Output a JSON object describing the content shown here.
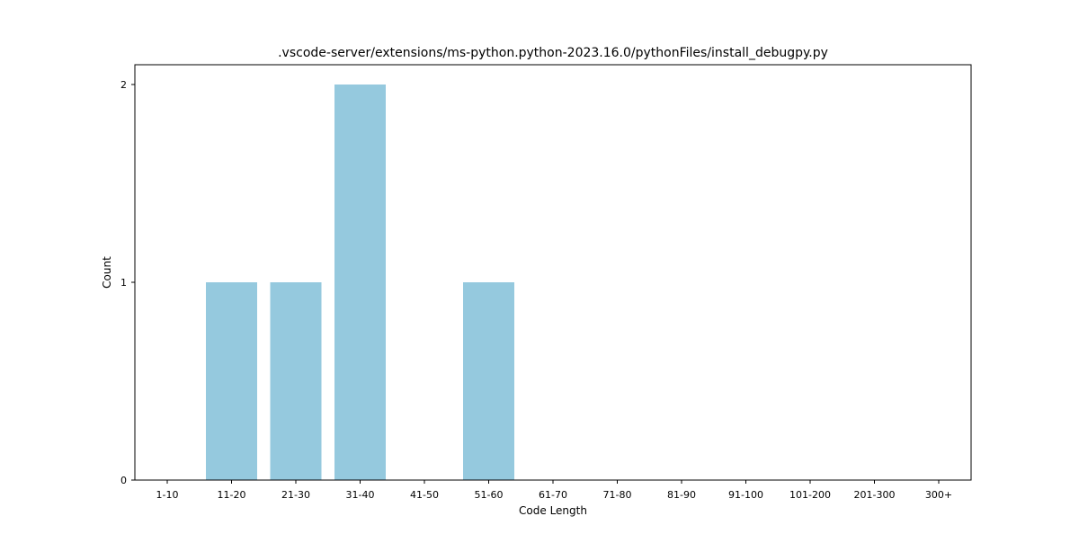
{
  "chart_data": {
    "type": "bar",
    "title": ".vscode-server/extensions/ms-python.python-2023.16.0/pythonFiles/install_debugpy.py",
    "xlabel": "Code Length",
    "ylabel": "Count",
    "categories": [
      "1-10",
      "11-20",
      "21-30",
      "31-40",
      "41-50",
      "51-60",
      "61-70",
      "71-80",
      "81-90",
      "91-100",
      "101-200",
      "201-300",
      "300+"
    ],
    "values": [
      0,
      1,
      1,
      2,
      0,
      1,
      0,
      0,
      0,
      0,
      0,
      0,
      0
    ],
    "ylim": [
      0,
      2.1
    ],
    "yticks": [
      0,
      1,
      2
    ],
    "grid": false,
    "legend": false,
    "bar_color": "#95c9de"
  }
}
